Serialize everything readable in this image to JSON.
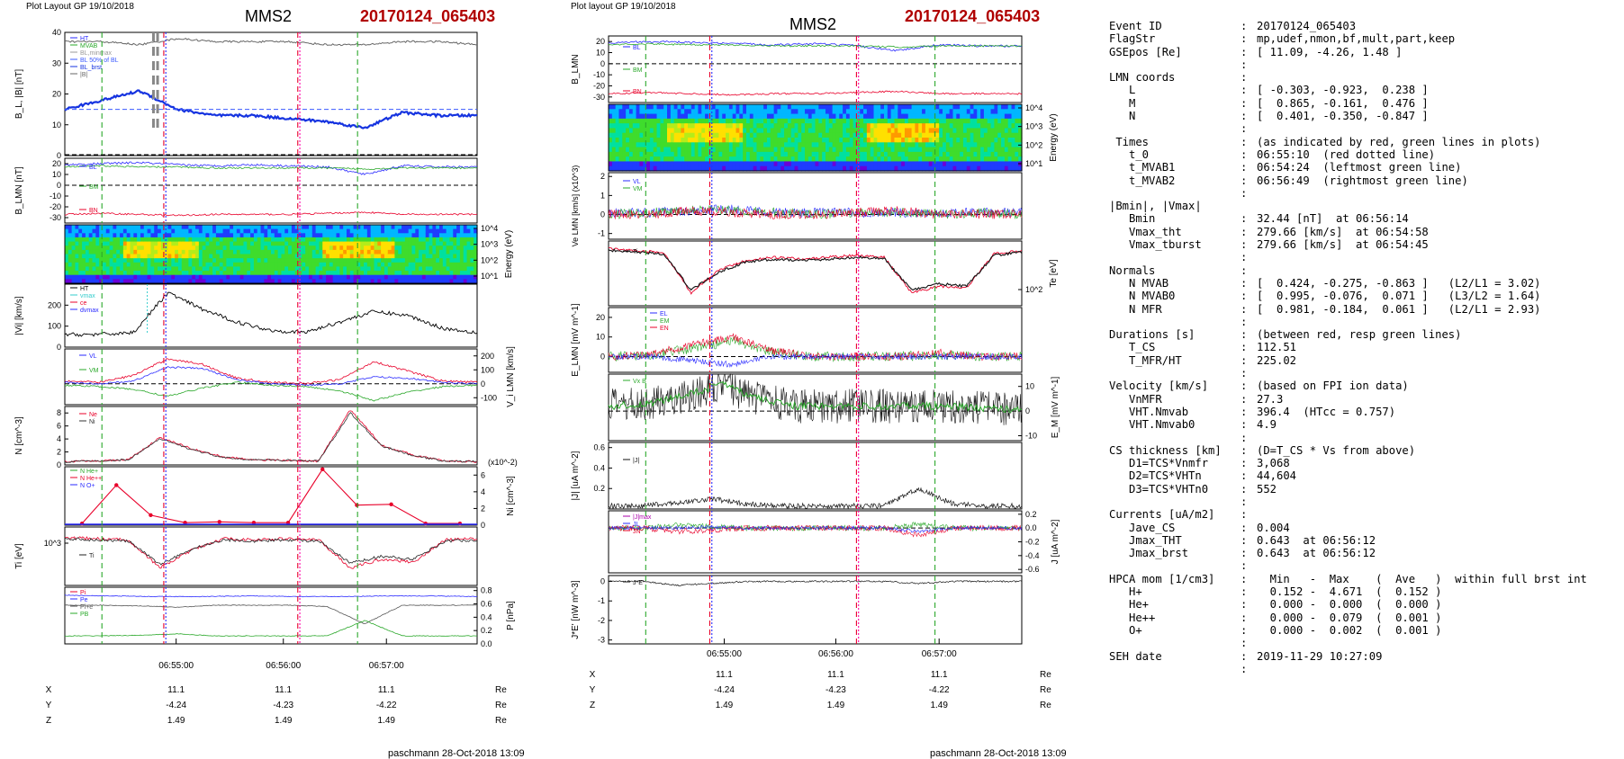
{
  "header": {
    "left_small": "Plot Layout GP 19/10/2018",
    "mid_small": "Plot layout GP 19/10/2018",
    "spacecraft": "MMS2",
    "event": "20170124_065403"
  },
  "footer": {
    "left": "paschmann 28-Oct-2018 13:09",
    "right": "paschmann 28-Oct-2018 13:09"
  },
  "colors": {
    "event_red": "#b00000",
    "t0_line": "#e8002a",
    "mvab_line": "#2aa82a"
  },
  "time_ticks": [
    "06:55:00",
    "06:56:00",
    "06:57:00"
  ],
  "orbit_table": {
    "rows": [
      {
        "label": "X",
        "values": [
          "11.1",
          "11.1",
          "11.1"
        ],
        "unit": "Re"
      },
      {
        "label": "Y",
        "values": [
          "-4.24",
          "-4.23",
          "-4.22"
        ],
        "unit": "Re"
      },
      {
        "label": "Z",
        "values": [
          "1.49",
          "1.49",
          "1.49"
        ],
        "unit": "Re"
      }
    ]
  },
  "chart_data": [
    {
      "type": "line",
      "panel": "left-B",
      "ylabel": "B_L, |B| [nT]",
      "ylim": [
        0,
        40
      ],
      "yticks": [
        "0",
        "10",
        "20",
        "30",
        "40"
      ],
      "legend": [
        "HT",
        "MVAB",
        "BL,minmax",
        "BL 50% of BL",
        "BL_brst",
        "|B|"
      ],
      "series": [
        {
          "name": "|B|",
          "values": [
            37,
            37,
            36,
            38,
            37,
            37,
            37,
            36,
            36,
            37,
            37,
            36
          ]
        },
        {
          "name": "BL_brst",
          "values": [
            15,
            18,
            21,
            15,
            13,
            13,
            12,
            11,
            9,
            14,
            13,
            13
          ]
        }
      ]
    },
    {
      "type": "line",
      "panel": "left-BLMN",
      "ylabel": "B_LMN [nT]",
      "ylim": [
        -35,
        25
      ],
      "yticks": [
        "-30",
        "-20",
        "-10",
        "0",
        "10",
        "20"
      ],
      "legend": [
        "BL",
        "BM",
        "BN"
      ]
    },
    {
      "type": "heatmap",
      "panel": "left-spectrogram",
      "ylabel": "Energy (eV)",
      "yticks": [
        "10^1",
        "10^2",
        "10^3",
        "10^4"
      ]
    },
    {
      "type": "line",
      "panel": "left-Vi",
      "ylabel": "|Vi| [km/s]",
      "ylim": [
        0,
        300
      ],
      "yticks": [
        "0",
        "100",
        "200"
      ],
      "legend": [
        "HT",
        "vmax",
        "ce",
        "dvmax"
      ]
    },
    {
      "type": "line",
      "panel": "left-ViLMN",
      "ylabel": "V_i LMN [km/s]",
      "ylim": [
        -150,
        250
      ],
      "yticks": [
        "-100",
        "0",
        "100",
        "200"
      ],
      "legend": [
        "VL",
        "VM",
        "VN"
      ]
    },
    {
      "type": "line",
      "panel": "left-N",
      "ylabel": "N [cm^-3]",
      "ylim": [
        0,
        9
      ],
      "yticks": [
        "0",
        "2",
        "4",
        "6",
        "8"
      ],
      "legend": [
        "Ne",
        "Ni"
      ]
    },
    {
      "type": "line",
      "panel": "left-HPCA",
      "ylabel": "Ni [cm^-3]",
      "ylim": [
        0,
        7
      ],
      "yticks": [
        "0",
        "2",
        "4",
        "6"
      ],
      "scale_note": "(x10^-2)",
      "legend": [
        "N He+",
        "N He++",
        "N O+"
      ],
      "series": [
        {
          "name": "N He++",
          "values": [
            0.2,
            4.8,
            1.2,
            0.3,
            0.4,
            0.3,
            0.3,
            6.7,
            2.4,
            2.5,
            0.2,
            0.2
          ]
        }
      ]
    },
    {
      "type": "line",
      "panel": "left-Ti",
      "ylabel": "Ti [eV]",
      "yticks": [
        "10^3"
      ],
      "legend": [
        "Ti"
      ]
    },
    {
      "type": "line",
      "panel": "left-P",
      "ylabel": "P [nPa]",
      "ylim": [
        0,
        0.85
      ],
      "yticks": [
        "0.0",
        "0.2",
        "0.4",
        "0.6",
        "0.8"
      ],
      "legend": [
        "Pi",
        "Pe",
        "Pi+e",
        "PB"
      ]
    },
    {
      "type": "line",
      "panel": "mid-BLMN",
      "ylabel": "B_LMN",
      "ylim": [
        -35,
        25
      ],
      "yticks": [
        "-30",
        "-20",
        "-10",
        "0",
        "10",
        "20"
      ],
      "legend": [
        "BL",
        "BM",
        "BN"
      ]
    },
    {
      "type": "heatmap",
      "panel": "mid-spectrogram",
      "ylabel": "Energy (eV)",
      "yticks": [
        "10^1",
        "10^2",
        "10^3",
        "10^4"
      ]
    },
    {
      "type": "line",
      "panel": "mid-Ve",
      "ylabel": "Ve LMN [km/s] (x10^3)",
      "ylim": [
        -1.3,
        2.2
      ],
      "yticks": [
        "-1",
        "0",
        "1",
        "2"
      ],
      "legend": [
        "VL",
        "VM"
      ]
    },
    {
      "type": "line",
      "panel": "mid-Te",
      "ylabel": "Te [eV]",
      "yticks": [
        "10^2"
      ],
      "legend": [
        "Ti",
        "Te"
      ]
    },
    {
      "type": "line",
      "panel": "mid-E",
      "ylabel": "E_LMN [mV m^-1]",
      "ylim": [
        -8,
        25
      ],
      "yticks": [
        "0",
        "10",
        "20"
      ],
      "legend": [
        "EL",
        "EM",
        "EN"
      ]
    },
    {
      "type": "line",
      "panel": "mid-EM",
      "ylabel": "E_M [mV m^-1]",
      "ylim": [
        -12,
        15
      ],
      "yticks": [
        "-10",
        "0",
        "10"
      ],
      "legend": [
        "Vx B"
      ]
    },
    {
      "type": "line",
      "panel": "mid-J",
      "ylabel": "|J| [uA m^-2]",
      "ylim": [
        0,
        0.65
      ],
      "yticks": [
        "0.2",
        "0.4",
        "0.6"
      ],
      "legend": [
        "|J|"
      ]
    },
    {
      "type": "line",
      "panel": "mid-JLMN",
      "ylabel": "J [uA m^-2]",
      "ylim": [
        -0.65,
        0.25
      ],
      "yticks": [
        "-0.6",
        "-0.4",
        "-0.2",
        "0.0",
        "0.2"
      ],
      "legend": [
        "|J|max",
        "JL",
        "JN"
      ]
    },
    {
      "type": "line",
      "panel": "mid-JE",
      "ylabel": "J*E' [nW m^-3]",
      "ylim": [
        -3.2,
        0.3
      ],
      "yticks": [
        "-3",
        "-2",
        "-1",
        "0"
      ],
      "legend": [
        "J*E'"
      ]
    }
  ],
  "info": [
    {
      "k": "Event ID",
      "v": "20170124_065403"
    },
    {
      "k": "FlagStr",
      "v": "mp,udef,nmon,bf,mult,part,keep"
    },
    {
      "k": "GSEpos [Re]",
      "v": "[ 11.09, -4.26, 1.48 ]"
    },
    {
      "k": "",
      "v": ""
    },
    {
      "k": "LMN coords",
      "v": ""
    },
    {
      "k": "   L",
      "v": "[ -0.303, -0.923,  0.238 ]"
    },
    {
      "k": "   M",
      "v": "[  0.865, -0.161,  0.476 ]"
    },
    {
      "k": "   N",
      "v": "[  0.401, -0.350, -0.847 ]"
    },
    {
      "k": "",
      "v": ""
    },
    {
      "k": " Times",
      "v": "(as indicated by red, green lines in plots)"
    },
    {
      "k": "   t_0",
      "v": "06:55:10  (red dotted line)"
    },
    {
      "k": "   t_MVAB1",
      "v": "06:54:24  (leftmost green line)"
    },
    {
      "k": "   t_MVAB2",
      "v": "06:56:49  (rightmost green line)"
    },
    {
      "k": "",
      "v": ""
    },
    {
      "k": "|Bmin|, |Vmax|",
      "v": "",
      "nocolon": true
    },
    {
      "k": "   Bmin",
      "v": "32.44 [nT]  at 06:56:14"
    },
    {
      "k": "   Vmax_tht",
      "v": "279.66 [km/s]  at 06:54:58"
    },
    {
      "k": "   Vmax_tburst",
      "v": "279.66 [km/s]  at 06:54:45"
    },
    {
      "k": "",
      "v": ""
    },
    {
      "k": "Normals",
      "v": ""
    },
    {
      "k": "   N MVAB",
      "v": "[  0.424, -0.275, -0.863 ]   (L2/L1 = 3.02)"
    },
    {
      "k": "   N MVAB0",
      "v": "[  0.995, -0.076,  0.071 ]   (L3/L2 = 1.64)"
    },
    {
      "k": "   N MFR",
      "v": "[  0.981, -0.184,  0.061 ]   (L2/L1 = 2.93)"
    },
    {
      "k": "",
      "v": ""
    },
    {
      "k": "Durations [s]",
      "v": "(between red, resp green lines)"
    },
    {
      "k": "   T_CS",
      "v": "112.51"
    },
    {
      "k": "   T_MFR/HT",
      "v": "225.02"
    },
    {
      "k": "",
      "v": ""
    },
    {
      "k": "Velocity [km/s]",
      "v": "(based on FPI ion data)"
    },
    {
      "k": "   VnMFR",
      "v": "27.3"
    },
    {
      "k": "   VHT.Nmvab",
      "v": "396.4  (HTcc = 0.757)"
    },
    {
      "k": "   VHT.Nmvab0",
      "v": "4.9"
    },
    {
      "k": "",
      "v": ""
    },
    {
      "k": "CS thickness [km]",
      "v": "(D=T_CS * Vs from above)"
    },
    {
      "k": "   D1=TCS*Vnmfr",
      "v": "3,068"
    },
    {
      "k": "   D2=TCS*VHTn",
      "v": "44,604"
    },
    {
      "k": "   D3=TCS*VHTn0",
      "v": "552"
    },
    {
      "k": "",
      "v": ""
    },
    {
      "k": "Currents [uA/m2]",
      "v": ""
    },
    {
      "k": "   Jave_CS",
      "v": "0.004"
    },
    {
      "k": "   Jmax_THT",
      "v": "0.643  at 06:56:12"
    },
    {
      "k": "   Jmax_brst",
      "v": "0.643  at 06:56:12"
    },
    {
      "k": "",
      "v": ""
    },
    {
      "k": "HPCA mom [1/cm3]",
      "v": "  Min   -  Max    (  Ave   )  within full brst int"
    },
    {
      "k": "   H+",
      "v": "  0.152 -  4.671  (  0.152 )"
    },
    {
      "k": "   He+",
      "v": "  0.000 -  0.000  (  0.000 )"
    },
    {
      "k": "   He++",
      "v": "  0.000 -  0.079  (  0.001 )"
    },
    {
      "k": "   O+",
      "v": "  0.000 -  0.002  (  0.001 )"
    },
    {
      "k": "",
      "v": ""
    },
    {
      "k": "SEH date",
      "v": "2019-11-29 10:27:09"
    },
    {
      "k": "",
      "v": ""
    }
  ]
}
